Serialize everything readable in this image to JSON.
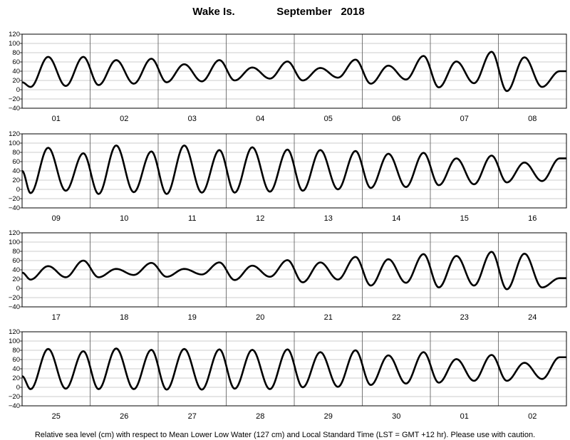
{
  "header": {
    "location": "Wake Is.",
    "period": "September   2018"
  },
  "footer": {
    "note": "Relative sea level (cm) with respect to Mean Lower Low Water (127 cm) and Local Standard Time (LST = GMT +12 hr). Please use with caution."
  },
  "chart_data": {
    "type": "line",
    "title": "Wake Is.   September   2018",
    "ylabel": "",
    "xlabel": "",
    "ylim": [
      -40,
      120
    ],
    "yticks": [
      -40,
      -20,
      0,
      20,
      40,
      60,
      80,
      100,
      120
    ],
    "grid": true,
    "line_color": "#000000",
    "panels": [
      {
        "days": [
          "01",
          "02",
          "03",
          "04",
          "05",
          "06",
          "07",
          "08"
        ],
        "start_level": 16,
        "daily": [
          {
            "highs": [
              71,
              71
            ],
            "lows": [
              6,
              8
            ]
          },
          {
            "highs": [
              64,
              67
            ],
            "lows": [
              10,
              13
            ]
          },
          {
            "highs": [
              55,
              64
            ],
            "lows": [
              16,
              18
            ]
          },
          {
            "highs": [
              48,
              61
            ],
            "lows": [
              20,
              24
            ]
          },
          {
            "highs": [
              47,
              65
            ],
            "lows": [
              20,
              26
            ]
          },
          {
            "highs": [
              52,
              73
            ],
            "lows": [
              13,
              22
            ]
          },
          {
            "highs": [
              61,
              82
            ],
            "lows": [
              5,
              14
            ]
          },
          {
            "highs": [
              70,
              40
            ],
            "lows": [
              -3,
              6
            ]
          }
        ]
      },
      {
        "days": [
          "09",
          "10",
          "11",
          "12",
          "13",
          "14",
          "15",
          "16"
        ],
        "start_level": 40,
        "daily": [
          {
            "highs": [
              90,
              78
            ],
            "lows": [
              -8,
              -3
            ]
          },
          {
            "highs": [
              95,
              82
            ],
            "lows": [
              -10,
              -6
            ]
          },
          {
            "highs": [
              95,
              85
            ],
            "lows": [
              -10,
              -7
            ]
          },
          {
            "highs": [
              91,
              86
            ],
            "lows": [
              -7,
              -5
            ]
          },
          {
            "highs": [
              85,
              83
            ],
            "lows": [
              -3,
              0
            ]
          },
          {
            "highs": [
              77,
              79
            ],
            "lows": [
              3,
              5
            ]
          },
          {
            "highs": [
              67,
              73
            ],
            "lows": [
              9,
              11
            ]
          },
          {
            "highs": [
              58,
              67
            ],
            "lows": [
              15,
              18
            ]
          }
        ]
      },
      {
        "days": [
          "17",
          "18",
          "19",
          "20",
          "21",
          "22",
          "23",
          "24"
        ],
        "start_level": 34,
        "daily": [
          {
            "highs": [
              48,
              60
            ],
            "lows": [
              19,
              24
            ]
          },
          {
            "highs": [
              42,
              55
            ],
            "lows": [
              24,
              29
            ]
          },
          {
            "highs": [
              42,
              56
            ],
            "lows": [
              25,
              30
            ]
          },
          {
            "highs": [
              49,
              61
            ],
            "lows": [
              18,
              25
            ]
          },
          {
            "highs": [
              56,
              68
            ],
            "lows": [
              13,
              19
            ]
          },
          {
            "highs": [
              63,
              74
            ],
            "lows": [
              6,
              12
            ]
          },
          {
            "highs": [
              70,
              79
            ],
            "lows": [
              2,
              6
            ]
          },
          {
            "highs": [
              75,
              22
            ],
            "lows": [
              -2,
              2
            ]
          }
        ]
      },
      {
        "days": [
          "25",
          "26",
          "27",
          "28",
          "29",
          "30",
          "01",
          "02"
        ],
        "start_level": 24,
        "daily": [
          {
            "highs": [
              83,
              78
            ],
            "lows": [
              -4,
              -3
            ]
          },
          {
            "highs": [
              84,
              81
            ],
            "lows": [
              -4,
              -4
            ]
          },
          {
            "highs": [
              83,
              82
            ],
            "lows": [
              -5,
              -5
            ]
          },
          {
            "highs": [
              81,
              82
            ],
            "lows": [
              -3,
              -4
            ]
          },
          {
            "highs": [
              76,
              80
            ],
            "lows": [
              0,
              1
            ]
          },
          {
            "highs": [
              69,
              76
            ],
            "lows": [
              5,
              8
            ]
          },
          {
            "highs": [
              61,
              70
            ],
            "lows": [
              10,
              14
            ]
          },
          {
            "highs": [
              53,
              65
            ],
            "lows": [
              14,
              18
            ]
          }
        ]
      }
    ]
  }
}
